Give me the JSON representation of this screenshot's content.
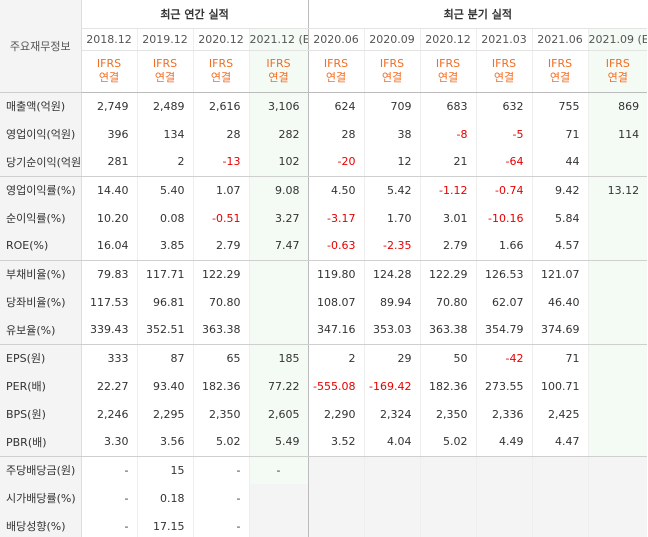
{
  "corner_label": "주요재무정보",
  "group_annual": "최근 연간 실적",
  "group_quarterly": "최근 분기 실적",
  "periods": [
    "2018.12",
    "2019.12",
    "2020.12",
    "2021.12",
    "2020.06",
    "2020.09",
    "2020.12",
    "2021.03",
    "2021.06",
    "2021.09"
  ],
  "estimate_mark": "(E)",
  "basis_top": "IFRS",
  "basis_bottom": "연결",
  "rows": [
    {
      "label": "매출액(억원)",
      "values": [
        "2,749",
        "2,489",
        "2,616",
        "3,106",
        "624",
        "709",
        "683",
        "632",
        "755",
        "869"
      ]
    },
    {
      "label": "영업이익(억원)",
      "values": [
        "396",
        "134",
        "28",
        "282",
        "28",
        "38",
        "-8",
        "-5",
        "71",
        "114"
      ]
    },
    {
      "label": "당기순이익(억원)",
      "values": [
        "281",
        "2",
        "-13",
        "102",
        "-20",
        "12",
        "21",
        "-64",
        "44",
        ""
      ]
    },
    {
      "label": "영업이익률(%)",
      "values": [
        "14.40",
        "5.40",
        "1.07",
        "9.08",
        "4.50",
        "5.42",
        "-1.12",
        "-0.74",
        "9.42",
        "13.12"
      ]
    },
    {
      "label": "순이익률(%)",
      "values": [
        "10.20",
        "0.08",
        "-0.51",
        "3.27",
        "-3.17",
        "1.70",
        "3.01",
        "-10.16",
        "5.84",
        ""
      ]
    },
    {
      "label": "ROE(%)",
      "values": [
        "16.04",
        "3.85",
        "2.79",
        "7.47",
        "-0.63",
        "-2.35",
        "2.79",
        "1.66",
        "4.57",
        ""
      ]
    },
    {
      "label": "부채비율(%)",
      "values": [
        "79.83",
        "117.71",
        "122.29",
        "",
        "119.80",
        "124.28",
        "122.29",
        "126.53",
        "121.07",
        ""
      ]
    },
    {
      "label": "당좌비율(%)",
      "values": [
        "117.53",
        "96.81",
        "70.80",
        "",
        "108.07",
        "89.94",
        "70.80",
        "62.07",
        "46.40",
        ""
      ]
    },
    {
      "label": "유보율(%)",
      "values": [
        "339.43",
        "352.51",
        "363.38",
        "",
        "347.16",
        "353.03",
        "363.38",
        "354.79",
        "374.69",
        ""
      ]
    },
    {
      "label": "EPS(원)",
      "values": [
        "333",
        "87",
        "65",
        "185",
        "2",
        "29",
        "50",
        "-42",
        "71",
        ""
      ]
    },
    {
      "label": "PER(배)",
      "values": [
        "22.27",
        "93.40",
        "182.36",
        "77.22",
        "-555.08",
        "-169.42",
        "182.36",
        "273.55",
        "100.71",
        ""
      ]
    },
    {
      "label": "BPS(원)",
      "values": [
        "2,246",
        "2,295",
        "2,350",
        "2,605",
        "2,290",
        "2,324",
        "2,350",
        "2,336",
        "2,425",
        ""
      ]
    },
    {
      "label": "PBR(배)",
      "values": [
        "3.30",
        "3.56",
        "5.02",
        "5.49",
        "3.52",
        "4.04",
        "5.02",
        "4.49",
        "4.47",
        ""
      ]
    },
    {
      "label": "주당배당금(원)",
      "values": [
        "-",
        "15",
        "-",
        "-",
        "",
        "",
        "",
        "",
        "",
        ""
      ]
    },
    {
      "label": "시가배당률(%)",
      "values": [
        "-",
        "0.18",
        "-",
        "",
        "",
        "",
        "",
        "",
        "",
        ""
      ]
    },
    {
      "label": "배당성향(%)",
      "values": [
        "-",
        "17.15",
        "-",
        "",
        "",
        "",
        "",
        "",
        "",
        ""
      ]
    }
  ]
}
